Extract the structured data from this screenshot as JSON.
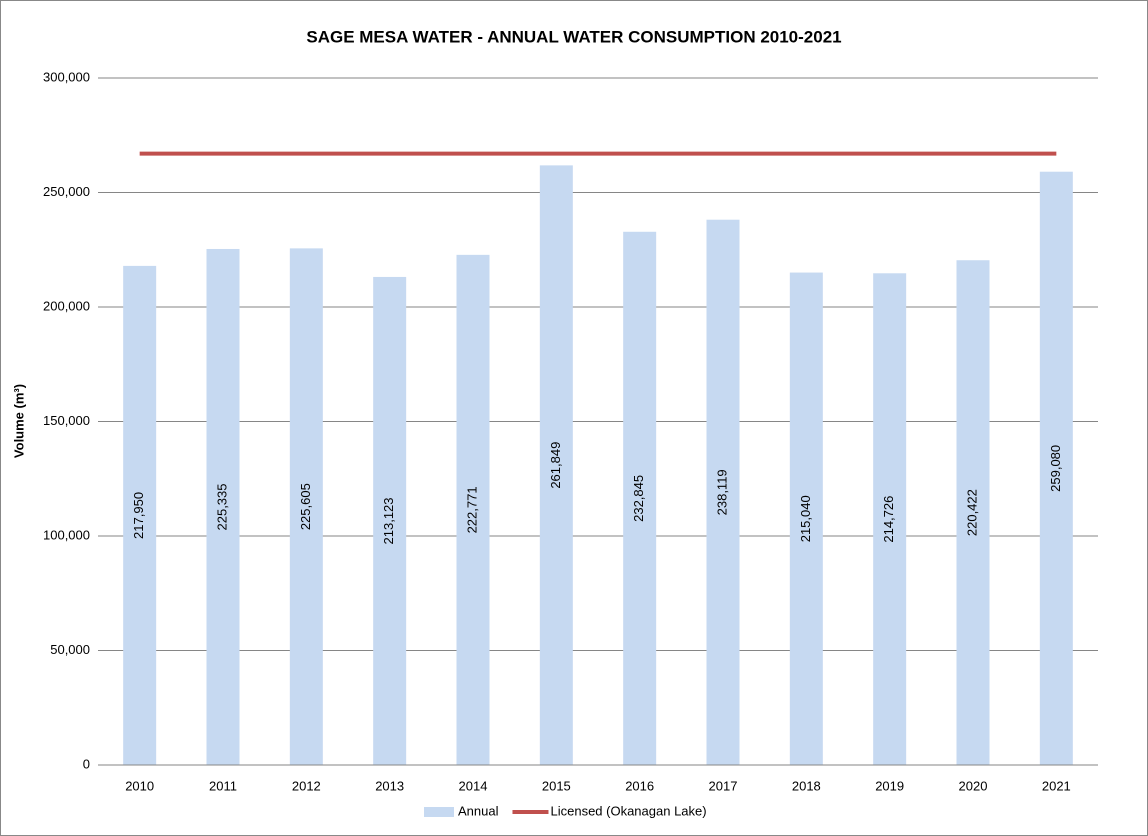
{
  "chart_data": {
    "type": "bar",
    "title": "SAGE MESA WATER - ANNUAL WATER CONSUMPTION 2010-2021",
    "y_label": "Volume (m³)",
    "categories": [
      "2010",
      "2011",
      "2012",
      "2013",
      "2014",
      "2015",
      "2016",
      "2017",
      "2018",
      "2019",
      "2020",
      "2021"
    ],
    "series": [
      {
        "name": "Annual",
        "type": "bar",
        "color": "#c6d9f1",
        "values": [
          217950,
          225335,
          225605,
          213123,
          222771,
          261849,
          232845,
          238119,
          215040,
          214726,
          220422,
          259080
        ],
        "value_labels": [
          "217,950",
          "225,335",
          "225,605",
          "213,123",
          "222,771",
          "261,849",
          "232,845",
          "238,119",
          "215,040",
          "214,726",
          "220,422",
          "259,080"
        ]
      },
      {
        "name": "Licensed (Okanagan Lake)",
        "type": "line",
        "color": "#c0504d",
        "values": [
          267000,
          267000,
          267000,
          267000,
          267000,
          267000,
          267000,
          267000,
          267000,
          267000,
          267000,
          267000
        ]
      }
    ],
    "ylim": [
      0,
      300000
    ],
    "yticks": [
      0,
      {
        "value": 50000,
        "label": "50,000"
      },
      {
        "value": 100000,
        "label": "100,000"
      },
      {
        "value": 150000,
        "label": "150,000"
      },
      {
        "value": 200000,
        "label": "200,000"
      },
      {
        "value": 250000,
        "label": "250,000"
      },
      {
        "value": 300000,
        "label": "300,000"
      }
    ],
    "grid": true,
    "legend": "bottom"
  }
}
